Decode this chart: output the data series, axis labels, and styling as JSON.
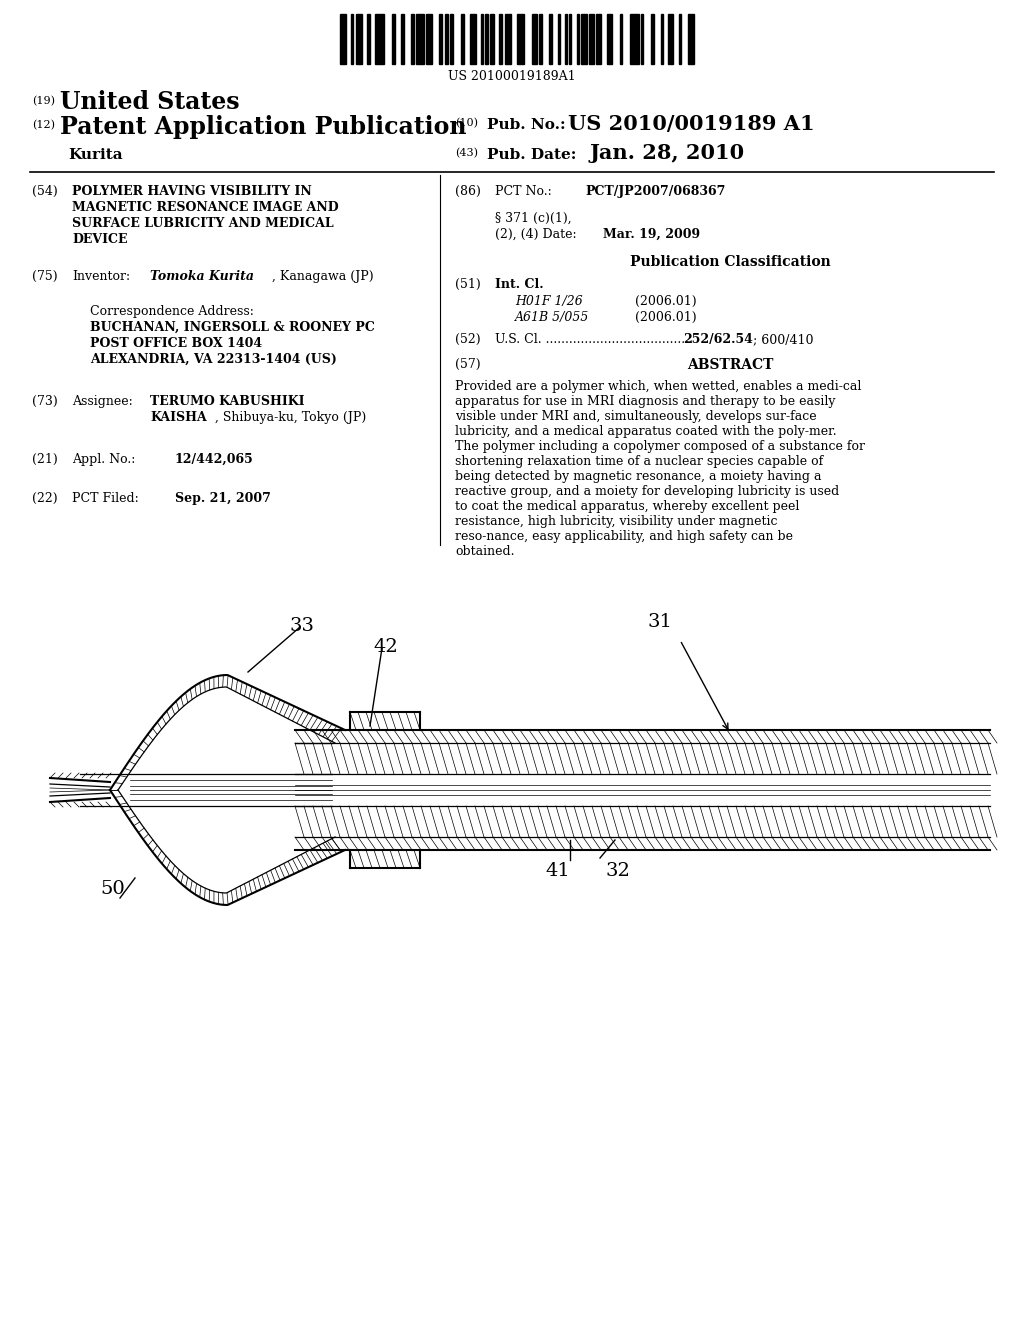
{
  "background_color": "#ffffff",
  "barcode_text": "US 20100019189A1",
  "field54_title_lines": [
    "POLYMER HAVING VISIBILITY IN",
    "MAGNETIC RESONANCE IMAGE AND",
    "SURFACE LUBRICITY AND MEDICAL",
    "DEVICE"
  ],
  "field86_value": "PCT/JP2007/068367",
  "field86b_value": "Mar. 19, 2009",
  "pub_class_title": "Publication Classification",
  "field51_class1": "H01F 1/26",
  "field51_year1": "(2006.01)",
  "field51_class2": "A61B 5/055",
  "field51_year2": "(2006.01)",
  "abstract_text": "Provided are a polymer which, when wetted, enables a medi-cal apparatus for use in MRI diagnosis and therapy to be easily visible under MRI and, simultaneously, develops sur-face lubricity, and a medical apparatus coated with the poly-mer. The polymer including a copolymer composed of a substance for shortening relaxation time of a nuclear species capable of being detected by magnetic resonance, a moiety having a reactive group, and a moiety for developing lubricity is used to coat the medical apparatus, whereby excellent peel resistance, high lubricity, visibility under magnetic reso-nance, easy applicability, and high safety can be obtained.",
  "field75_bold": "Tomoka Kurita",
  "field75_rest": ", Kanagawa (JP)",
  "field73_bold1": "TERUMO KABUSHIKI",
  "field73_bold2": "KAISHA",
  "field73_rest": ", Shibuya-ku, Tokyo (JP)",
  "field21_value": "12/442,065",
  "field22_value": "Sep. 21, 2007"
}
